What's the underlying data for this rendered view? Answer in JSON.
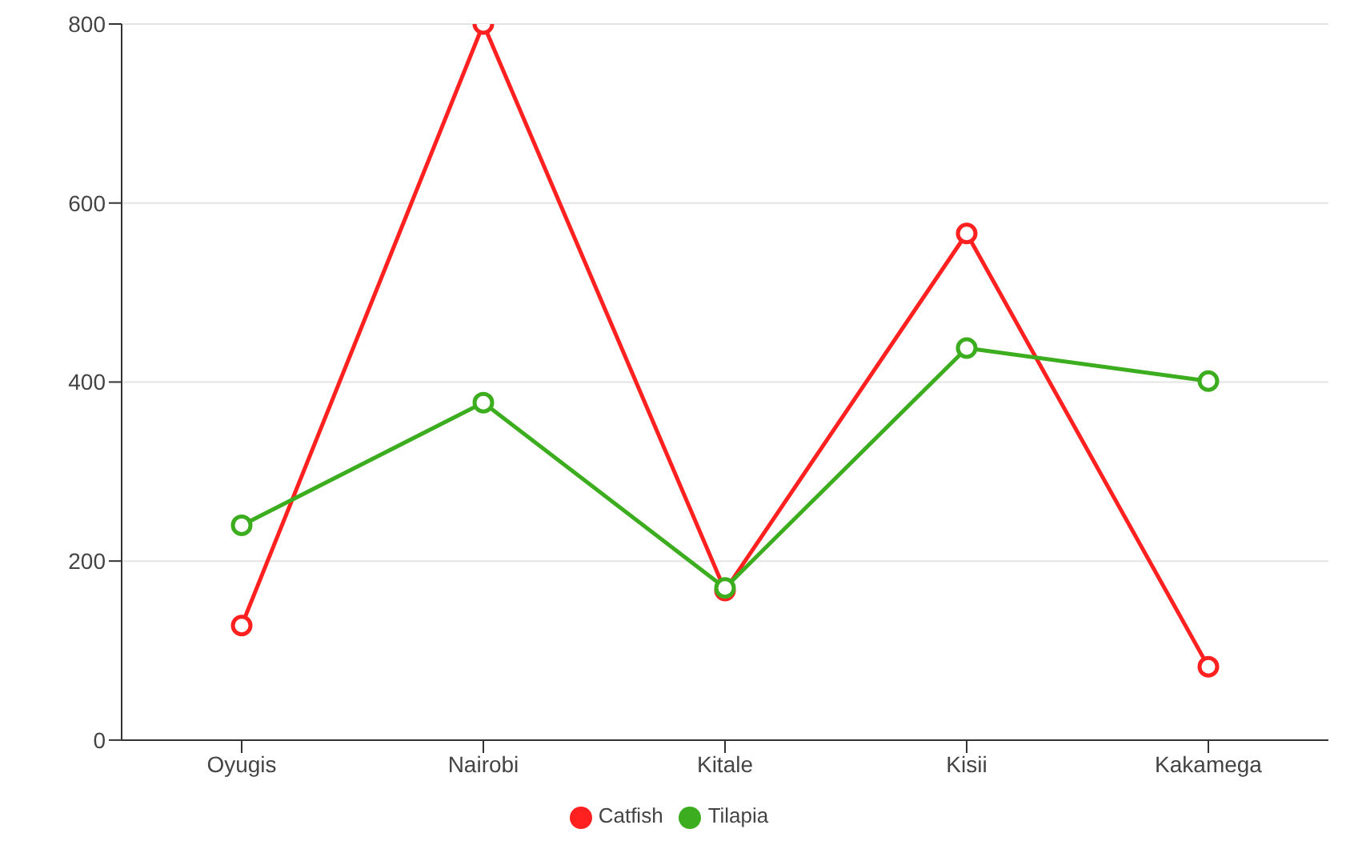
{
  "chart_data": {
    "type": "line",
    "categories": [
      "Oyugis",
      "Nairobi",
      "Kitale",
      "Kisii",
      "Kakamega"
    ],
    "series": [
      {
        "name": "Catfish",
        "color": "#ff2020",
        "values": [
          128,
          800,
          167,
          566,
          82
        ]
      },
      {
        "name": "Tilapia",
        "color": "#3cad1e",
        "values": [
          240,
          377,
          170,
          438,
          401
        ]
      }
    ],
    "ylim": [
      0,
      800
    ],
    "yticks": [
      0,
      200,
      400,
      600,
      800
    ],
    "grid": "y",
    "legend": "bottom",
    "marker": "circle",
    "line_style": "solid"
  }
}
